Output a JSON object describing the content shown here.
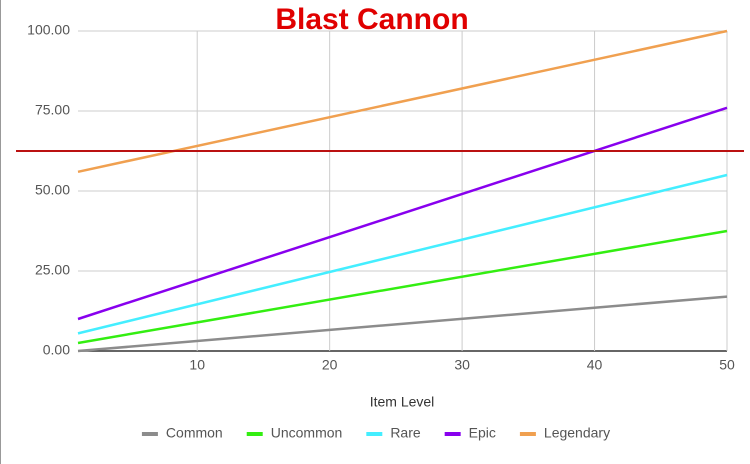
{
  "chart_data": {
    "type": "line",
    "title": "Blast Cannon",
    "x_label": "Item Level",
    "x": [
      1,
      50
    ],
    "series": [
      {
        "name": "Common",
        "color": "#8c8c8c",
        "values": [
          0,
          17
        ]
      },
      {
        "name": "Uncommon",
        "color": "#33ee11",
        "values": [
          2.5,
          37.5
        ]
      },
      {
        "name": "Rare",
        "color": "#44eeff",
        "values": [
          5.5,
          55
        ]
      },
      {
        "name": "Epic",
        "color": "#8800ee",
        "values": [
          10,
          76
        ]
      },
      {
        "name": "Legendary",
        "color": "#f0a050",
        "values": [
          56,
          100
        ]
      }
    ],
    "reference_line": {
      "value": 62.5,
      "color": "#bb1111"
    },
    "xlim": [
      1,
      50
    ],
    "xticks": [
      10,
      20,
      30,
      40,
      50
    ],
    "ylim": [
      0,
      100
    ],
    "yticks": [
      {
        "value": 0,
        "label": "0.00"
      },
      {
        "value": 25,
        "label": "25.00"
      },
      {
        "value": 50,
        "label": "50.00"
      },
      {
        "value": 75,
        "label": "75.00"
      },
      {
        "value": 100,
        "label": "100.00"
      }
    ],
    "grid": true,
    "legend": "bottom"
  }
}
